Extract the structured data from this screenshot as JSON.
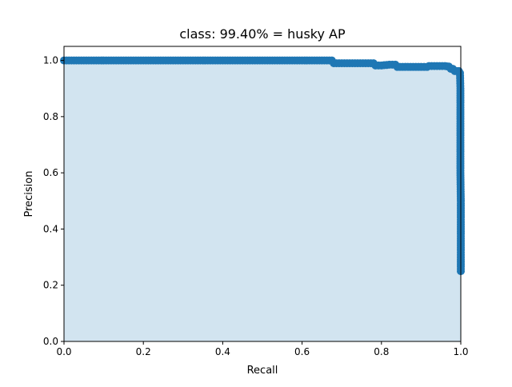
{
  "chart_data": {
    "type": "area",
    "title": "class: 99.40% = husky AP",
    "xlabel": "Recall",
    "ylabel": "Precision",
    "xlim": [
      0.0,
      1.0
    ],
    "ylim": [
      0.0,
      1.05
    ],
    "xticks": [
      "0.0",
      "0.2",
      "0.4",
      "0.6",
      "0.8",
      "1.0"
    ],
    "yticks": [
      "0.0",
      "0.2",
      "0.4",
      "0.6",
      "0.8",
      "1.0"
    ],
    "xtick_values": [
      0.0,
      0.2,
      0.4,
      0.6,
      0.8,
      1.0
    ],
    "ytick_values": [
      0.0,
      0.2,
      0.4,
      0.6,
      0.8,
      1.0
    ],
    "grid": false,
    "line_color": "#1f77b4",
    "fill_color": "#1f77b4",
    "fill_opacity": 0.2,
    "series": [
      {
        "points": [
          [
            0.0,
            1.0
          ],
          [
            0.05,
            1.0
          ],
          [
            0.1,
            1.0
          ],
          [
            0.15,
            1.0
          ],
          [
            0.2,
            1.0
          ],
          [
            0.25,
            1.0
          ],
          [
            0.3,
            1.0
          ],
          [
            0.35,
            1.0
          ],
          [
            0.4,
            1.0
          ],
          [
            0.45,
            1.0
          ],
          [
            0.5,
            1.0
          ],
          [
            0.55,
            1.0
          ],
          [
            0.6,
            1.0
          ],
          [
            0.65,
            1.0
          ],
          [
            0.675,
            1.0
          ],
          [
            0.68,
            0.99
          ],
          [
            0.7,
            0.99
          ],
          [
            0.72,
            0.99
          ],
          [
            0.74,
            0.99
          ],
          [
            0.76,
            0.99
          ],
          [
            0.78,
            0.99
          ],
          [
            0.785,
            0.982
          ],
          [
            0.8,
            0.982
          ],
          [
            0.82,
            0.985
          ],
          [
            0.835,
            0.985
          ],
          [
            0.84,
            0.977
          ],
          [
            0.86,
            0.977
          ],
          [
            0.88,
            0.977
          ],
          [
            0.9,
            0.977
          ],
          [
            0.915,
            0.977
          ],
          [
            0.92,
            0.98
          ],
          [
            0.94,
            0.98
          ],
          [
            0.96,
            0.98
          ],
          [
            0.97,
            0.978
          ],
          [
            0.975,
            0.97
          ],
          [
            0.98,
            0.97
          ],
          [
            0.985,
            0.962
          ],
          [
            0.995,
            0.962
          ],
          [
            0.998,
            0.955
          ],
          [
            0.999,
            0.9
          ],
          [
            0.999,
            0.8
          ],
          [
            0.999,
            0.7
          ],
          [
            0.999,
            0.6
          ],
          [
            1.0,
            0.5
          ],
          [
            1.0,
            0.4
          ],
          [
            1.0,
            0.3
          ],
          [
            1.0,
            0.25
          ]
        ]
      }
    ]
  }
}
